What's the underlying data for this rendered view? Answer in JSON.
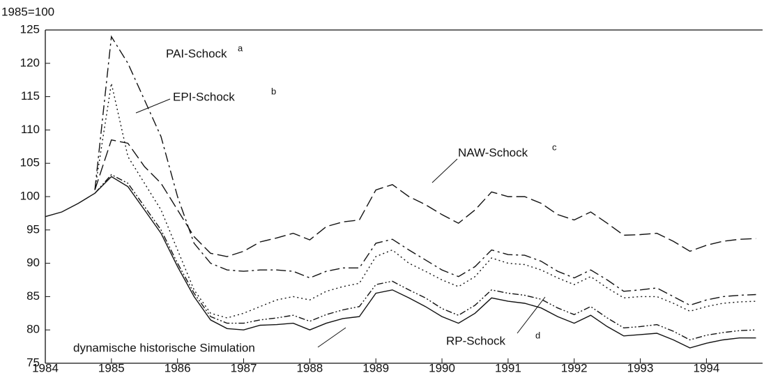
{
  "chart_data": {
    "type": "line",
    "y_label": "1985=100",
    "x": [
      1984,
      1984.25,
      1984.5,
      1984.75,
      1985,
      1985.25,
      1985.5,
      1985.75,
      1986,
      1986.25,
      1986.5,
      1986.75,
      1987,
      1987.25,
      1987.5,
      1987.75,
      1988,
      1988.25,
      1988.5,
      1988.75,
      1989,
      1989.25,
      1989.5,
      1989.75,
      1990,
      1990.25,
      1990.5,
      1990.75,
      1991,
      1991.25,
      1991.5,
      1991.75,
      1992,
      1992.25,
      1992.5,
      1992.75,
      1993,
      1993.25,
      1993.5,
      1993.75,
      1994,
      1994.25,
      1994.5,
      1994.75
    ],
    "series": [
      {
        "name": "dynamische historische Simulation",
        "color": "#111111",
        "dash": "none",
        "values": [
          97,
          97.7,
          99,
          100.5,
          103,
          101.5,
          98,
          94.5,
          89.5,
          85,
          81.5,
          80.2,
          80,
          80.7,
          80.8,
          81,
          80,
          81,
          81.7,
          82,
          85.5,
          86,
          84.8,
          83.5,
          82,
          81,
          82.5,
          84.8,
          84.3,
          84,
          83.3,
          82,
          81,
          82.2,
          80.5,
          79.1,
          79.3,
          79.5,
          78.5,
          77.3,
          78,
          78.5,
          78.8,
          78.8
        ]
      },
      {
        "name": "RP-Schock",
        "note": "d",
        "color": "#111111",
        "dash": "9,3,2,3,2,3",
        "values": [
          null,
          null,
          null,
          100.5,
          103.3,
          102,
          98.5,
          95,
          90,
          85.5,
          82,
          81,
          81,
          81.5,
          81.8,
          82.2,
          81.3,
          82.3,
          83,
          83.5,
          86.8,
          87.3,
          86,
          84.8,
          83.2,
          82.2,
          83.7,
          86,
          85.5,
          85.2,
          84.6,
          83.3,
          82.3,
          83.5,
          81.8,
          80.3,
          80.5,
          80.8,
          79.8,
          78.5,
          79.2,
          79.6,
          79.9,
          80
        ]
      },
      {
        "name": "EPI-Schock",
        "note": "b",
        "color": "#111111",
        "dash": "2,4",
        "values": [
          null,
          null,
          null,
          101,
          117,
          106,
          102,
          98,
          92,
          86,
          82.5,
          81.8,
          82.5,
          83.5,
          84.5,
          85,
          84.5,
          85.8,
          86.5,
          87,
          91,
          92,
          90,
          88.8,
          87.5,
          86.5,
          88,
          90.8,
          90,
          89.8,
          89,
          87.8,
          86.8,
          88,
          86.3,
          84.8,
          85,
          85,
          84,
          82.8,
          83.5,
          84,
          84.2,
          84.3
        ]
      },
      {
        "name": "PAI-Schock",
        "note": "a",
        "color": "#111111",
        "dash": "14,5,3,5",
        "values": [
          null,
          null,
          null,
          101,
          124,
          120,
          114.5,
          109,
          100,
          93,
          90,
          89,
          88.8,
          89,
          89,
          88.8,
          87.8,
          88.8,
          89.3,
          89.3,
          93,
          93.6,
          92,
          90.5,
          89,
          88,
          89.5,
          92,
          91.3,
          91.2,
          90.3,
          88.8,
          87.8,
          89,
          87.5,
          85.8,
          86,
          86.3,
          85,
          83.7,
          84.5,
          85,
          85.2,
          85.3
        ]
      },
      {
        "name": "NAW-Schock",
        "note": "c",
        "color": "#111111",
        "dash": "16,6",
        "values": [
          null,
          null,
          null,
          101,
          108.5,
          108,
          104.5,
          102,
          98,
          94,
          91.5,
          91,
          91.8,
          93.2,
          93.8,
          94.5,
          93.5,
          95.5,
          96.2,
          96.5,
          101,
          101.8,
          100,
          98.8,
          97.3,
          96,
          98,
          100.7,
          100,
          100,
          99,
          97.3,
          96.5,
          97.7,
          96,
          94.2,
          94.3,
          94.5,
          93.3,
          91.8,
          92.7,
          93.3,
          93.6,
          93.7
        ]
      }
    ],
    "xlim": [
      1984,
      1994.85
    ],
    "xticks": [
      1984,
      1985,
      1986,
      1987,
      1988,
      1989,
      1990,
      1991,
      1992,
      1993,
      1994
    ],
    "ylim": [
      75,
      125
    ],
    "yticks": [
      75,
      80,
      85,
      90,
      95,
      100,
      105,
      110,
      115,
      120,
      125
    ]
  }
}
